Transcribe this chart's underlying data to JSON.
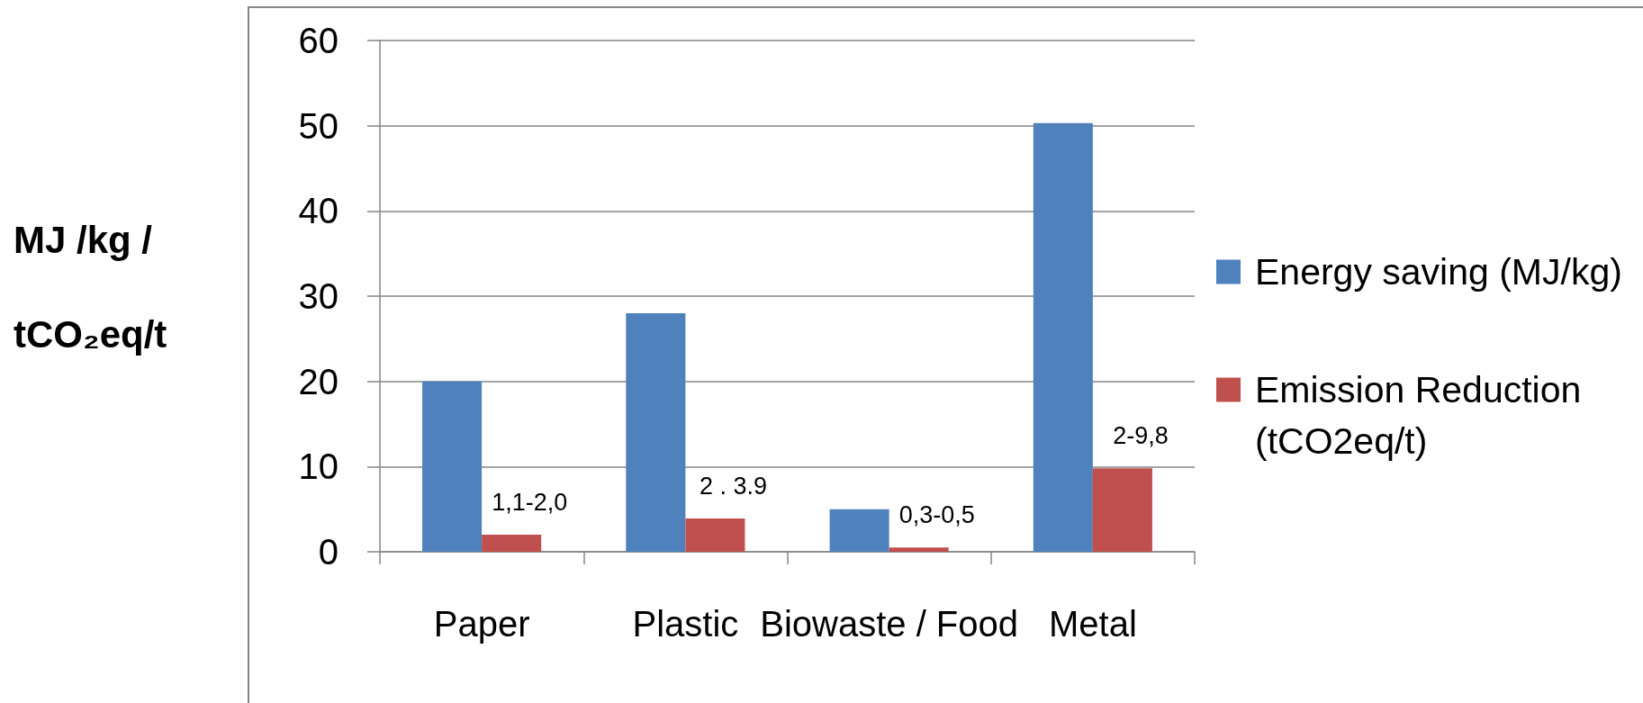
{
  "chart_data": {
    "type": "bar",
    "ylabel": "MJ /kg / tCO₂eq/t",
    "categories": [
      "Paper",
      "Plastic",
      "Biowaste / Food",
      "Metal"
    ],
    "series": [
      {
        "name": "Energy saving (MJ/kg)",
        "color": "#4f81bd",
        "values": [
          20,
          28,
          5,
          50.3
        ]
      },
      {
        "name": "Emission Reduction (tCO2eq/t)",
        "color": "#c0504d",
        "values": [
          2,
          3.9,
          0.5,
          9.8
        ],
        "value_labels": [
          "1,1-2,0",
          "2 . 3.9",
          "0,3-0,5",
          "2-9,8"
        ]
      }
    ],
    "ylim": [
      0,
      60
    ],
    "yticks": [
      0,
      10,
      20,
      30,
      40,
      50,
      60
    ],
    "grid": "y",
    "legend": "right"
  }
}
